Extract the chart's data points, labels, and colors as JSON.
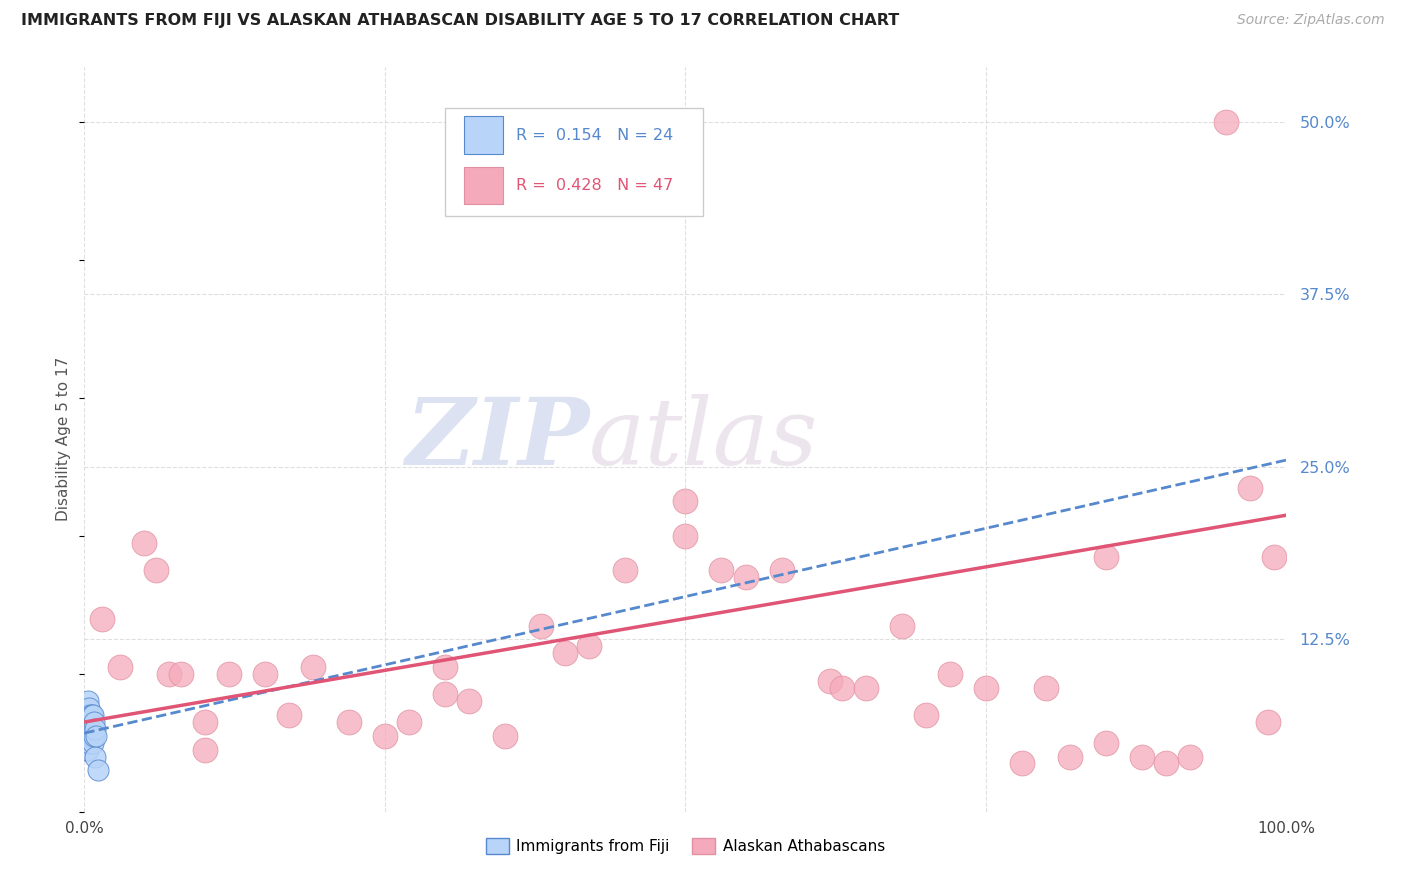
{
  "title": "IMMIGRANTS FROM FIJI VS ALASKAN ATHABASCAN DISABILITY AGE 5 TO 17 CORRELATION CHART",
  "source": "Source: ZipAtlas.com",
  "ylabel": "Disability Age 5 to 17",
  "xlim": [
    0.0,
    1.0
  ],
  "ylim": [
    0.0,
    0.54
  ],
  "xticks": [
    0.0,
    0.25,
    0.5,
    0.75,
    1.0
  ],
  "xtick_labels": [
    "0.0%",
    "",
    "",
    "",
    "100.0%"
  ],
  "yticks": [
    0.0,
    0.125,
    0.25,
    0.375,
    0.5
  ],
  "ytick_labels": [
    "",
    "12.5%",
    "25.0%",
    "37.5%",
    "50.0%"
  ],
  "fiji_R": 0.154,
  "fiji_N": 24,
  "athabascan_R": 0.428,
  "athabascan_N": 47,
  "fiji_color": "#b8d4f8",
  "athabascan_color": "#f5aabb",
  "fiji_trend_color": "#5588cc",
  "athabascan_trend_color": "#e05575",
  "watermark_text": "ZIPatlas",
  "fiji_x": [
    0.001,
    0.001,
    0.002,
    0.002,
    0.002,
    0.003,
    0.003,
    0.003,
    0.003,
    0.004,
    0.004,
    0.004,
    0.005,
    0.005,
    0.006,
    0.006,
    0.007,
    0.007,
    0.008,
    0.008,
    0.009,
    0.009,
    0.01,
    0.011
  ],
  "fiji_y": [
    0.055,
    0.045,
    0.07,
    0.06,
    0.05,
    0.08,
    0.065,
    0.055,
    0.045,
    0.075,
    0.065,
    0.05,
    0.07,
    0.055,
    0.07,
    0.055,
    0.07,
    0.05,
    0.065,
    0.055,
    0.06,
    0.04,
    0.055,
    0.03
  ],
  "athabascan_x": [
    0.015,
    0.03,
    0.05,
    0.06,
    0.07,
    0.08,
    0.1,
    0.12,
    0.15,
    0.17,
    0.19,
    0.22,
    0.25,
    0.27,
    0.3,
    0.32,
    0.35,
    0.38,
    0.4,
    0.42,
    0.45,
    0.5,
    0.53,
    0.55,
    0.58,
    0.62,
    0.63,
    0.65,
    0.68,
    0.7,
    0.72,
    0.75,
    0.78,
    0.8,
    0.82,
    0.85,
    0.88,
    0.9,
    0.92,
    0.95,
    0.97,
    0.985,
    0.99,
    0.85,
    0.3,
    0.5,
    0.1
  ],
  "athabascan_y": [
    0.14,
    0.105,
    0.195,
    0.175,
    0.1,
    0.1,
    0.065,
    0.1,
    0.1,
    0.07,
    0.105,
    0.065,
    0.055,
    0.065,
    0.085,
    0.08,
    0.055,
    0.135,
    0.115,
    0.12,
    0.175,
    0.2,
    0.175,
    0.17,
    0.175,
    0.095,
    0.09,
    0.09,
    0.135,
    0.07,
    0.1,
    0.09,
    0.035,
    0.09,
    0.04,
    0.05,
    0.04,
    0.035,
    0.04,
    0.5,
    0.235,
    0.065,
    0.185,
    0.185,
    0.105,
    0.225,
    0.045
  ],
  "fiji_line_x": [
    0.0,
    1.0
  ],
  "fiji_line_y": [
    0.057,
    0.255
  ],
  "ath_line_x": [
    0.0,
    1.0
  ],
  "ath_line_y": [
    0.065,
    0.215
  ],
  "background_color": "#ffffff",
  "grid_color": "#d8d8d8"
}
